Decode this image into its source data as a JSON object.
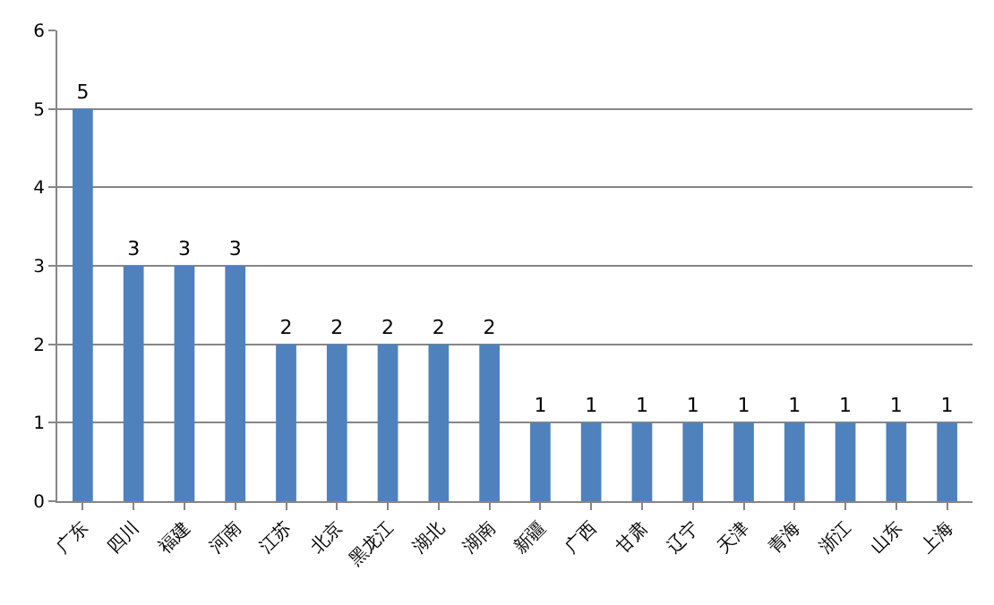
{
  "chart_data": {
    "type": "bar",
    "categories": [
      "广东",
      "四川",
      "福建",
      "河南",
      "江苏",
      "北京",
      "黑龙江",
      "湖北",
      "湖南",
      "新疆",
      "广西",
      "甘肃",
      "辽宁",
      "天津",
      "青海",
      "浙江",
      "山东",
      "上海"
    ],
    "values": [
      5,
      3,
      3,
      3,
      2,
      2,
      2,
      2,
      2,
      1,
      1,
      1,
      1,
      1,
      1,
      1,
      1,
      1
    ],
    "color": "#4f81bd",
    "ylim": [
      0,
      6
    ],
    "yticks": [
      0,
      1,
      2,
      3,
      4,
      5,
      6
    ],
    "grid": "y",
    "data_labels": true,
    "legend": false
  }
}
